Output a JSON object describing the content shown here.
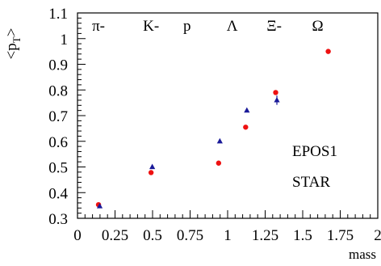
{
  "chart_data": {
    "type": "scatter",
    "title": "",
    "xlabel": "mass",
    "ylabel": "<pT>",
    "ylabel_main": "<p",
    "ylabel_sub": "T",
    "ylabel_end": ">",
    "xlim": [
      0,
      2
    ],
    "ylim": [
      0.3,
      1.1
    ],
    "x_ticks": [
      0,
      0.25,
      0.5,
      0.75,
      1,
      1.25,
      1.5,
      1.75,
      2
    ],
    "x_tick_labels": [
      "0",
      "0.25",
      "0.5",
      "0.75",
      "1",
      "1.25",
      "1.5",
      "1.75",
      "2"
    ],
    "y_ticks": [
      0.3,
      0.4,
      0.5,
      0.6,
      0.7,
      0.8,
      0.9,
      1.0,
      1.1
    ],
    "y_tick_labels": [
      "0.3",
      "0.4",
      "0.5",
      "0.6",
      "0.7",
      "0.8",
      "0.9",
      "1",
      "1.1"
    ],
    "grid": false,
    "particle_labels": [
      {
        "text": "π-",
        "x": 0.14
      },
      {
        "text": "K-",
        "x": 0.49
      },
      {
        "text": "p",
        "x": 0.73
      },
      {
        "text": "Λ",
        "x": 1.03
      },
      {
        "text": "Ξ-",
        "x": 1.31
      },
      {
        "text": "Ω",
        "x": 1.6
      }
    ],
    "series": [
      {
        "name": "EPOS1",
        "marker": "circle",
        "color": "#ee1111",
        "x": [
          0.14,
          0.49,
          0.94,
          1.12,
          1.32,
          1.67
        ],
        "y": [
          0.353,
          0.478,
          0.515,
          0.655,
          0.79,
          0.95
        ],
        "yerr": [
          0,
          0,
          0,
          0,
          0,
          0.008
        ]
      },
      {
        "name": "STAR",
        "marker": "triangle",
        "color": "#1a1a99",
        "x": [
          0.14,
          0.49,
          0.94,
          1.12,
          1.32
        ],
        "y": [
          0.347,
          0.5,
          0.6,
          0.72,
          0.76
        ],
        "yerr": [
          0,
          0,
          0,
          0,
          0.018
        ]
      }
    ]
  }
}
